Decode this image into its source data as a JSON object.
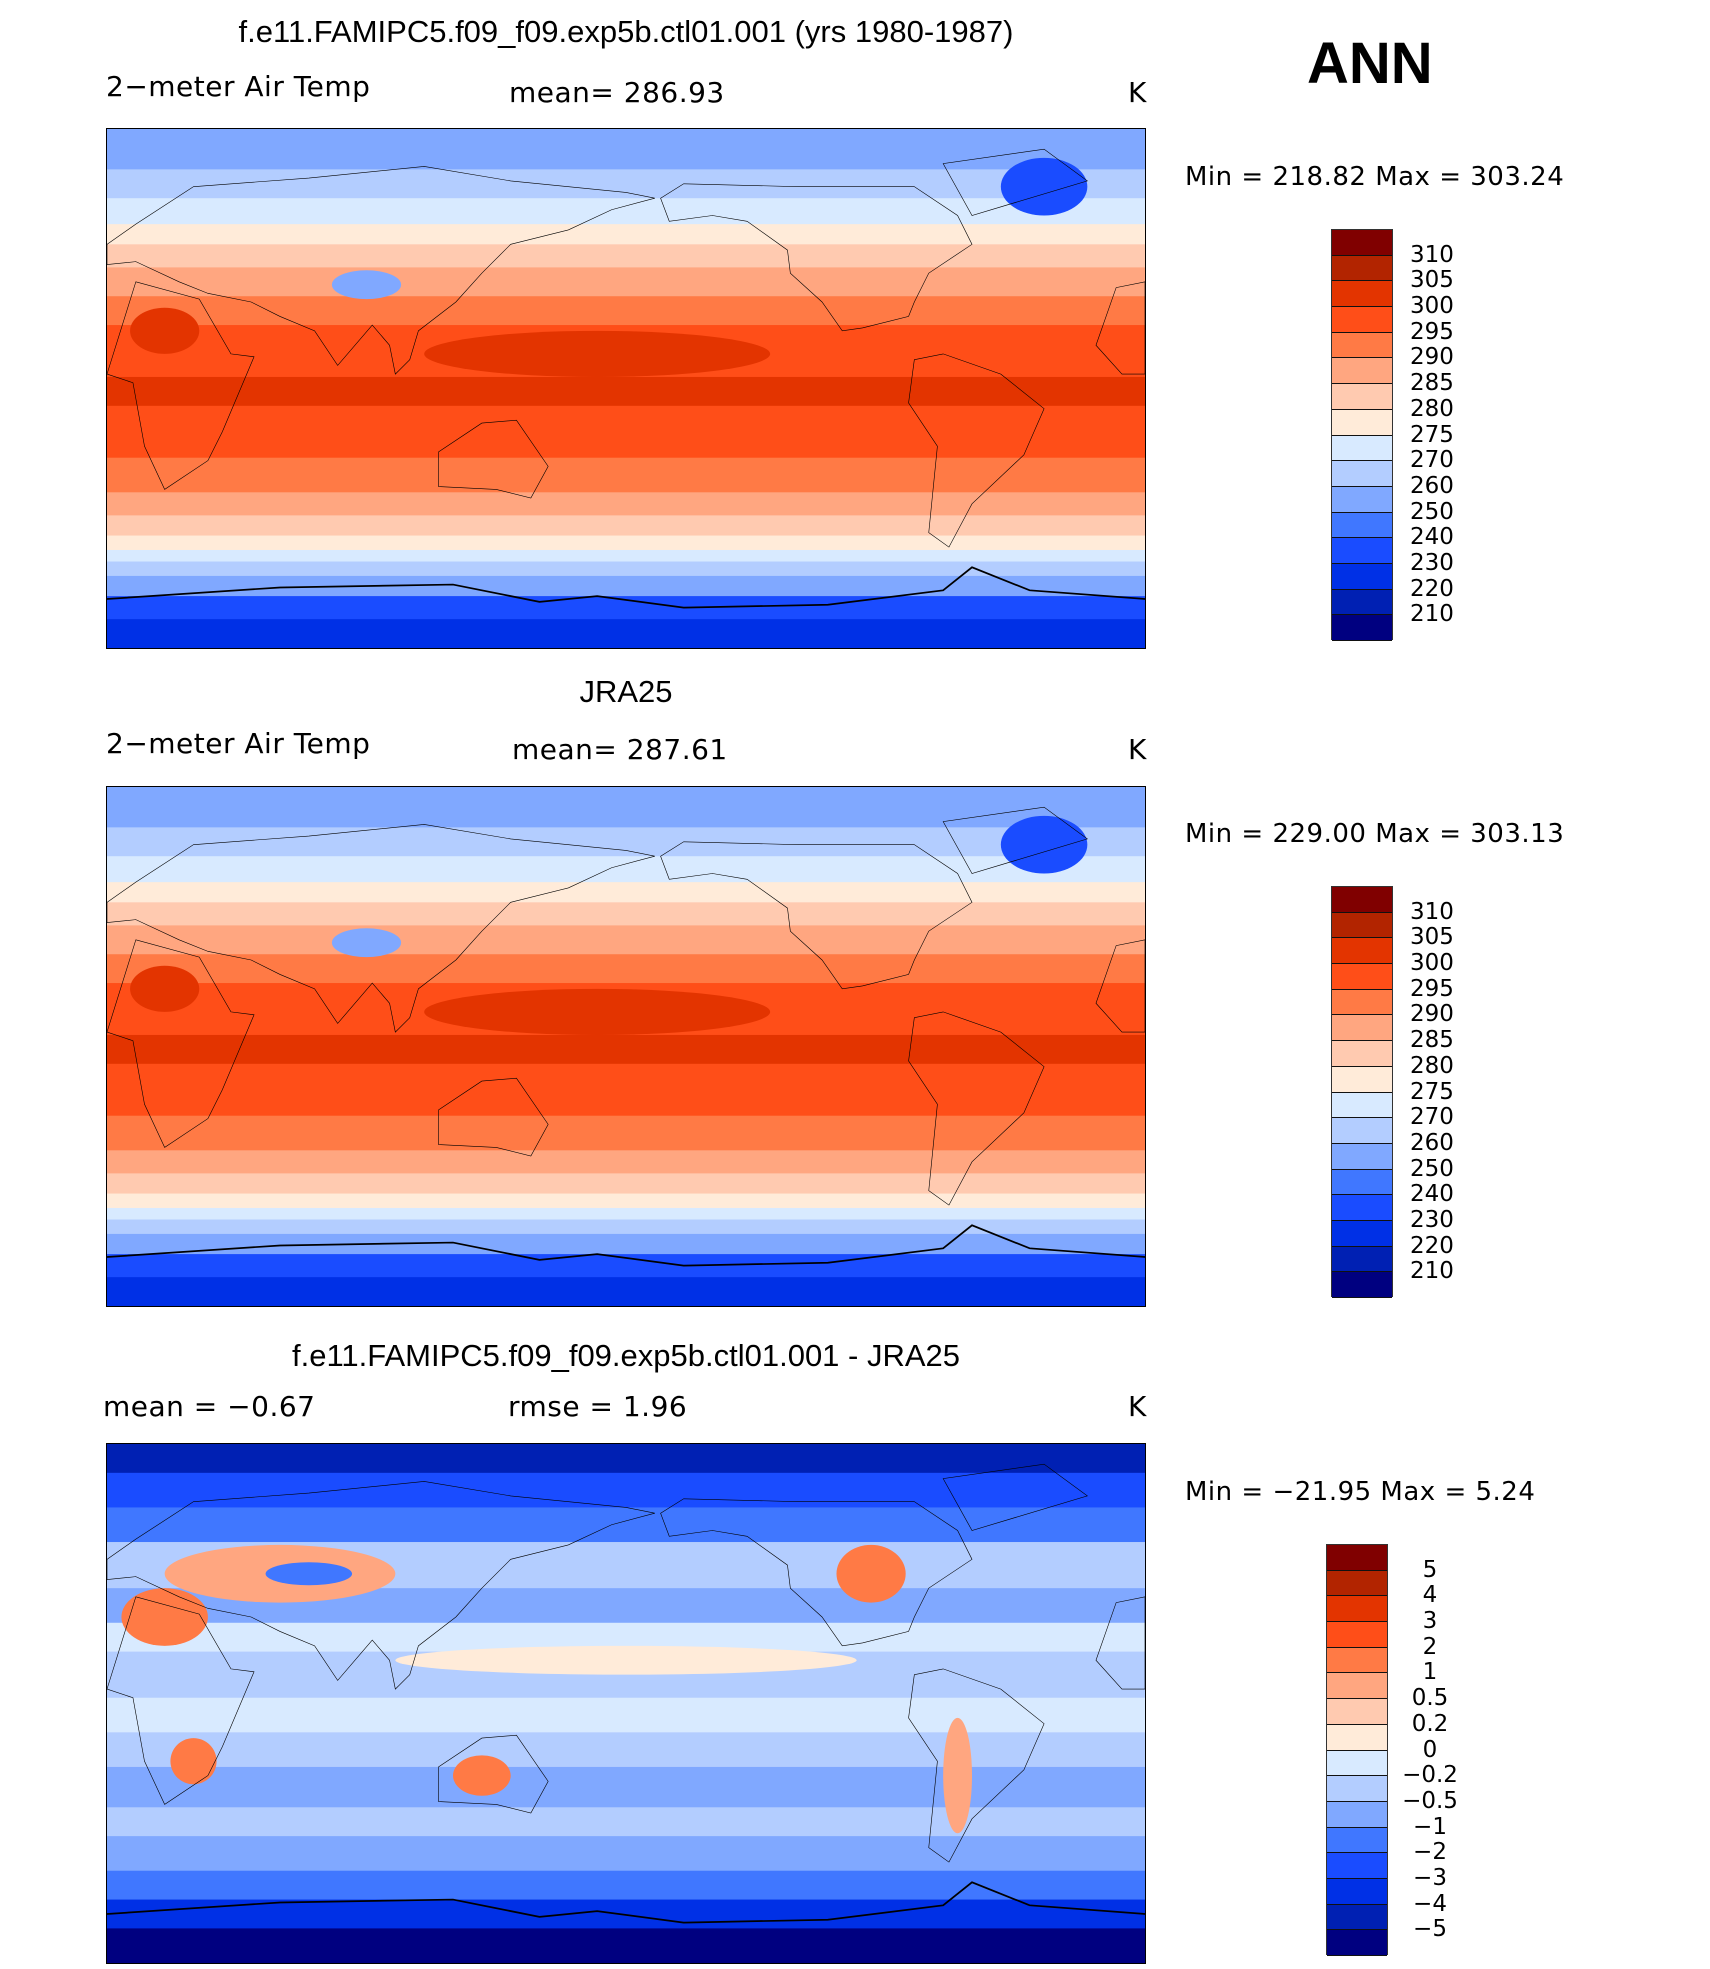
{
  "season": "ANN",
  "panels": [
    {
      "title": "f.e11.FAMIPC5.f09_f09.exp5b.ctl01.001 (yrs 1980-1987)",
      "left_label": "2−meter Air Temp",
      "center_label": "mean=  286.93",
      "units": "K",
      "minmax": "Min  =  218.82  Max  =  303.24"
    },
    {
      "title": "JRA25",
      "left_label": "2−meter Air Temp",
      "center_label": "mean=  287.61",
      "units": "K",
      "minmax": "Min  =  229.00  Max  =  303.13"
    },
    {
      "title": "f.e11.FAMIPC5.f09_f09.exp5b.ctl01.001 - JRA25",
      "left_label": "mean  =    −0.67",
      "center_label": "rmse  =     1.96",
      "units": "K",
      "minmax": "Min  =  −21.95  Max  =     5.24"
    }
  ],
  "colorbars": {
    "colors": [
      "#800000",
      "#b22400",
      "#e33400",
      "#ff4e18",
      "#ff7a45",
      "#ffa680",
      "#ffcab0",
      "#ffebd9",
      "#d8eaff",
      "#b3cdff",
      "#80a8ff",
      "#4077ff",
      "#1a4cff",
      "#0030e6",
      "#0020b3",
      "#000080"
    ],
    "abs_labels": [
      "310",
      "305",
      "300",
      "295",
      "290",
      "285",
      "280",
      "275",
      "270",
      "260",
      "250",
      "240",
      "230",
      "220",
      "210"
    ],
    "diff_labels": [
      "5",
      "4",
      "3",
      "2",
      "1",
      "0.5",
      "0.2",
      "0",
      "−0.2",
      "−0.5",
      "−1",
      "−2",
      "−3",
      "−4",
      "−5"
    ]
  },
  "chart_data": [
    {
      "type": "heatmap",
      "title": "f.e11.FAMIPC5.f09_f09.exp5b.ctl01.001 (yrs 1980-1987)",
      "variable": "2-meter Air Temp",
      "units": "K",
      "mean": 286.93,
      "min": 218.82,
      "max": 303.24,
      "levels": [
        210,
        220,
        230,
        240,
        250,
        260,
        270,
        275,
        280,
        285,
        290,
        295,
        300,
        305,
        310
      ]
    },
    {
      "type": "heatmap",
      "title": "JRA25",
      "variable": "2-meter Air Temp",
      "units": "K",
      "mean": 287.61,
      "min": 229.0,
      "max": 303.13,
      "levels": [
        210,
        220,
        230,
        240,
        250,
        260,
        270,
        275,
        280,
        285,
        290,
        295,
        300,
        305,
        310
      ]
    },
    {
      "type": "heatmap",
      "title": "f.e11.FAMIPC5.f09_f09.exp5b.ctl01.001 - JRA25",
      "units": "K",
      "mean": -0.67,
      "rmse": 1.96,
      "min": -21.95,
      "max": 5.24,
      "levels": [
        -5,
        -4,
        -3,
        -2,
        -1,
        -0.5,
        -0.2,
        0,
        0.2,
        0.5,
        1,
        2,
        3,
        4,
        5
      ]
    }
  ]
}
